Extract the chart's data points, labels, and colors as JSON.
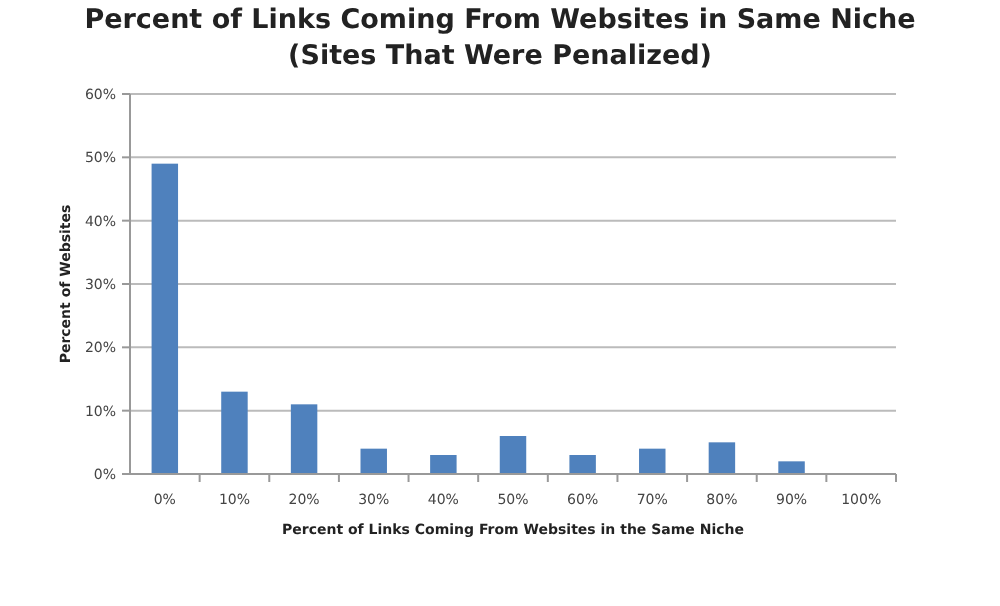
{
  "chart_data": {
    "type": "bar",
    "title": "Percent of Links Coming From Websites in Same Niche\n(Sites That Were Penalized)",
    "xlabel": "Percent of Links Coming From Websites in the Same Niche",
    "ylabel": "Percent of Websites",
    "categories": [
      "0%",
      "10%",
      "20%",
      "30%",
      "40%",
      "50%",
      "60%",
      "70%",
      "80%",
      "90%",
      "100%"
    ],
    "values": [
      49,
      13,
      11,
      4,
      3,
      6,
      3,
      4,
      5,
      2,
      0
    ],
    "color": "#4f81bd",
    "ylim": [
      0,
      60
    ],
    "yticks": [
      {
        "value": 0,
        "label": "0%"
      },
      {
        "value": 10,
        "label": "10%"
      },
      {
        "value": 20,
        "label": "20%"
      },
      {
        "value": 30,
        "label": "30%"
      },
      {
        "value": 40,
        "label": "40%"
      },
      {
        "value": 50,
        "label": "50%"
      },
      {
        "value": 60,
        "label": "60%"
      }
    ],
    "grid": "y"
  }
}
